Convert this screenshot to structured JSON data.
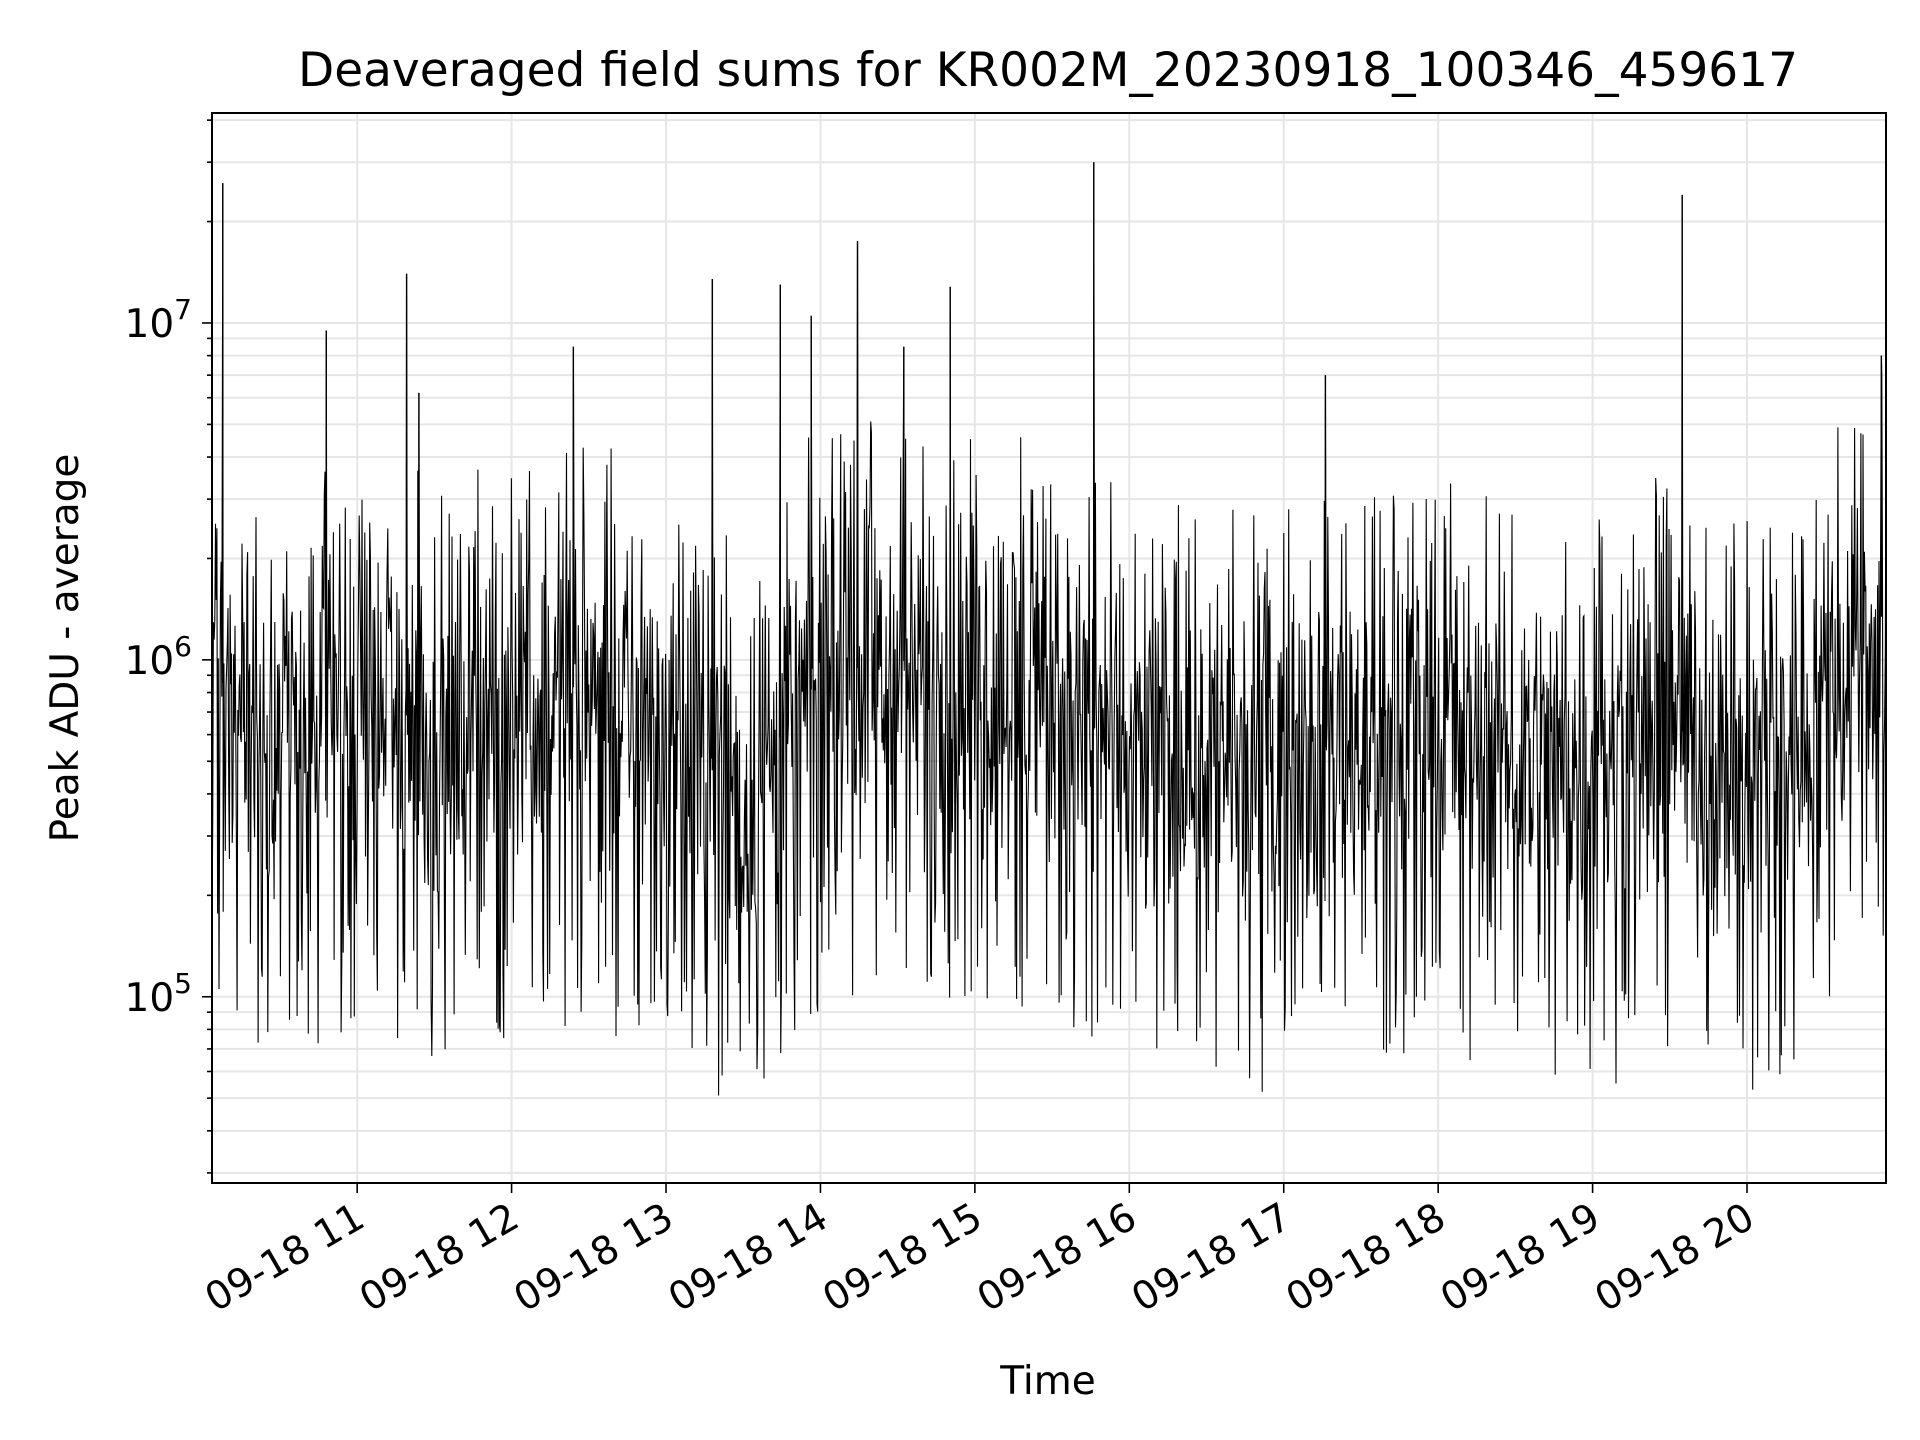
{
  "chart_data": {
    "type": "line",
    "title": "Deaveraged field sums for KR002M_20230918_100346_459617",
    "xlabel": "Time",
    "ylabel": "Peak ADU - average",
    "yscale": "log",
    "ylim": [
      28000,
      42000000
    ],
    "xlim_hours": [
      10.06,
      20.9
    ],
    "grid": true,
    "line_color": "#000000",
    "grid_color": "#e6e6e6",
    "x_ticks": [
      {
        "value": 11,
        "label": "09-18 11"
      },
      {
        "value": 12,
        "label": "09-18 12"
      },
      {
        "value": 13,
        "label": "09-18 13"
      },
      {
        "value": 14,
        "label": "09-18 14"
      },
      {
        "value": 15,
        "label": "09-18 15"
      },
      {
        "value": 16,
        "label": "09-18 16"
      },
      {
        "value": 17,
        "label": "09-18 17"
      },
      {
        "value": 18,
        "label": "09-18 18"
      },
      {
        "value": 19,
        "label": "09-18 19"
      },
      {
        "value": 20,
        "label": "09-18 20"
      }
    ],
    "y_ticks": [
      {
        "value": 100000,
        "base": "10",
        "exp": "5"
      },
      {
        "value": 1000000,
        "base": "10",
        "exp": "6"
      },
      {
        "value": 10000000,
        "base": "10",
        "exp": "7"
      }
    ],
    "spikes": [
      {
        "x": 10.13,
        "y": 26000000
      },
      {
        "x": 10.8,
        "y": 9500000
      },
      {
        "x": 11.32,
        "y": 14000000
      },
      {
        "x": 11.4,
        "y": 6200000
      },
      {
        "x": 12.4,
        "y": 8500000
      },
      {
        "x": 13.3,
        "y": 13500000
      },
      {
        "x": 13.74,
        "y": 13000000
      },
      {
        "x": 13.94,
        "y": 10500000
      },
      {
        "x": 14.24,
        "y": 17500000
      },
      {
        "x": 14.54,
        "y": 8500000
      },
      {
        "x": 14.84,
        "y": 12800000
      },
      {
        "x": 15.77,
        "y": 30000000
      },
      {
        "x": 17.27,
        "y": 7000000
      },
      {
        "x": 19.58,
        "y": 24000000
      },
      {
        "x": 20.87,
        "y": 8000000
      }
    ],
    "series": [
      {
        "baseline_profile": [
          {
            "x": 10.06,
            "y": 900000
          },
          {
            "x": 10.5,
            "y": 650000
          },
          {
            "x": 11.0,
            "y": 750000
          },
          {
            "x": 11.5,
            "y": 650000
          },
          {
            "x": 12.0,
            "y": 750000
          },
          {
            "x": 12.5,
            "y": 850000
          },
          {
            "x": 13.0,
            "y": 600000
          },
          {
            "x": 13.5,
            "y": 400000
          },
          {
            "x": 14.0,
            "y": 900000
          },
          {
            "x": 14.5,
            "y": 1000000
          },
          {
            "x": 15.0,
            "y": 900000
          },
          {
            "x": 15.5,
            "y": 800000
          },
          {
            "x": 16.0,
            "y": 500000
          },
          {
            "x": 16.5,
            "y": 550000
          },
          {
            "x": 17.0,
            "y": 500000
          },
          {
            "x": 17.5,
            "y": 600000
          },
          {
            "x": 18.0,
            "y": 650000
          },
          {
            "x": 18.5,
            "y": 550000
          },
          {
            "x": 19.0,
            "y": 500000
          },
          {
            "x": 19.5,
            "y": 650000
          },
          {
            "x": 20.0,
            "y": 450000
          },
          {
            "x": 20.5,
            "y": 800000
          },
          {
            "x": 20.9,
            "y": 1400000
          }
        ]
      }
    ]
  }
}
